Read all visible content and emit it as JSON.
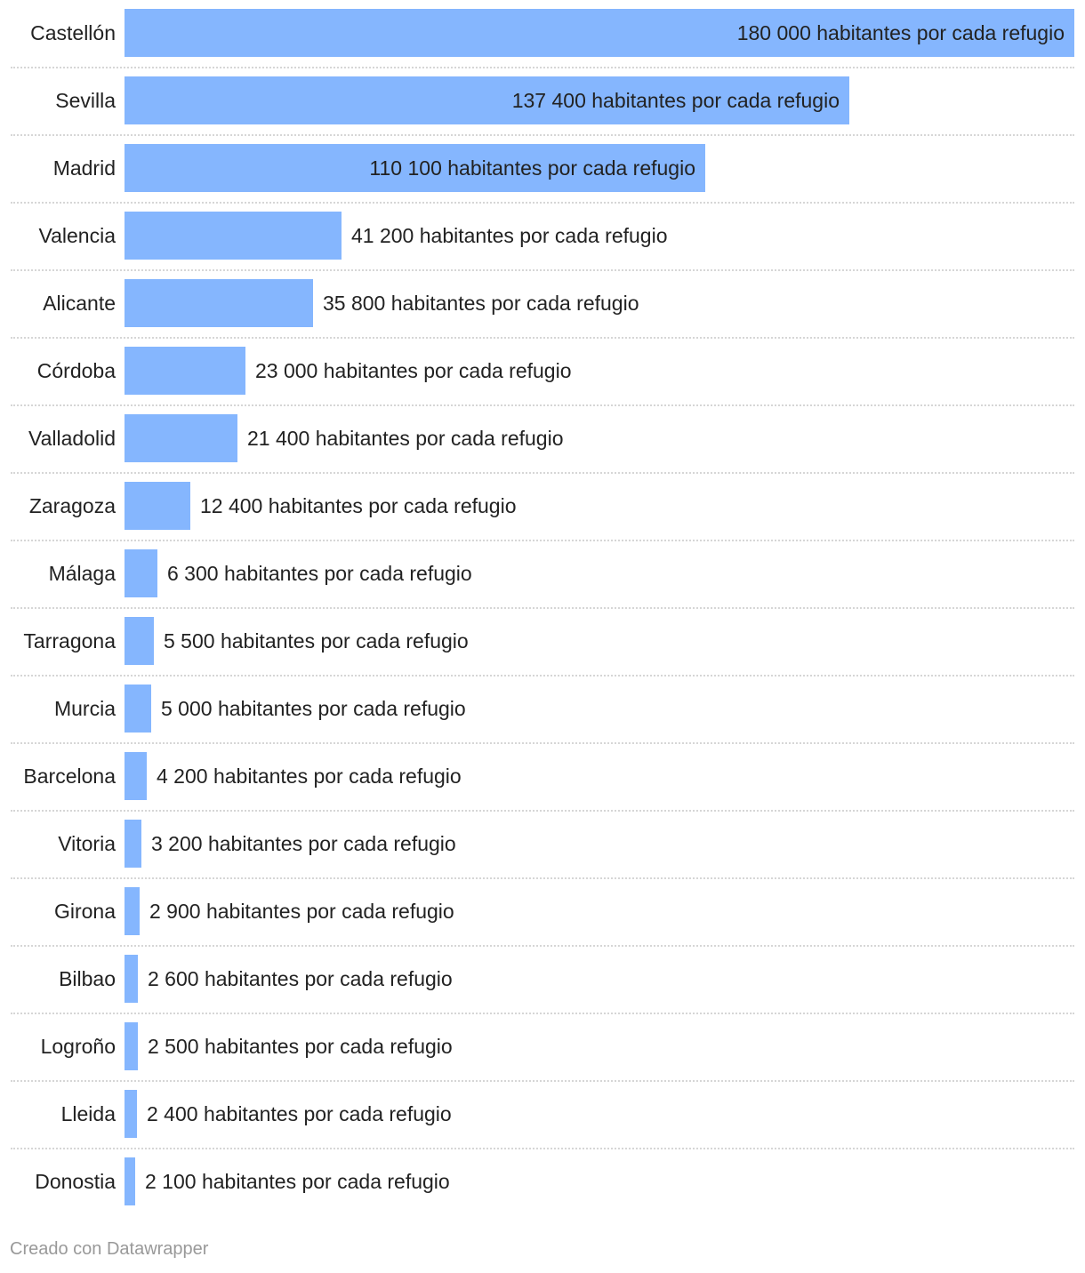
{
  "chart_data": {
    "type": "bar",
    "orientation": "horizontal",
    "categories": [
      "Castellón",
      "Sevilla",
      "Madrid",
      "Valencia",
      "Alicante",
      "Córdoba",
      "Valladolid",
      "Zaragoza",
      "Málaga",
      "Tarragona",
      "Murcia",
      "Barcelona",
      "Vitoria",
      "Girona",
      "Bilbao",
      "Logroño",
      "Lleida",
      "Donostia"
    ],
    "values": [
      180000,
      137400,
      110100,
      41200,
      35800,
      23000,
      21400,
      12400,
      6300,
      5500,
      5000,
      4200,
      3200,
      2900,
      2600,
      2500,
      2400,
      2100
    ],
    "data_labels": [
      "180 000 habitantes por cada refugio",
      "137 400 habitantes por cada refugio",
      "110 100 habitantes por cada refugio",
      "41 200 habitantes por cada refugio",
      "35 800 habitantes por cada refugio",
      "23 000 habitantes por cada refugio",
      "21 400 habitantes por cada refugio",
      "12 400 habitantes por cada refugio",
      "6 300 habitantes por cada refugio",
      "5 500 habitantes por cada refugio",
      "5 000 habitantes por cada refugio",
      "4 200 habitantes por cada refugio",
      "3 200 habitantes por cada refugio",
      "2 900 habitantes por cada refugio",
      "2 600 habitantes por cada refugio",
      "2 500 habitantes por cada refugio",
      "2 400 habitantes por cada refugio",
      "2 100 habitantes por cada refugio"
    ],
    "xlim": [
      0,
      180000
    ],
    "grid": false,
    "colors": {
      "bar": "#85b6fe",
      "text": "#222222",
      "divider": "#d6d6d6"
    }
  },
  "footer": {
    "credit": "Creado con Datawrapper"
  }
}
